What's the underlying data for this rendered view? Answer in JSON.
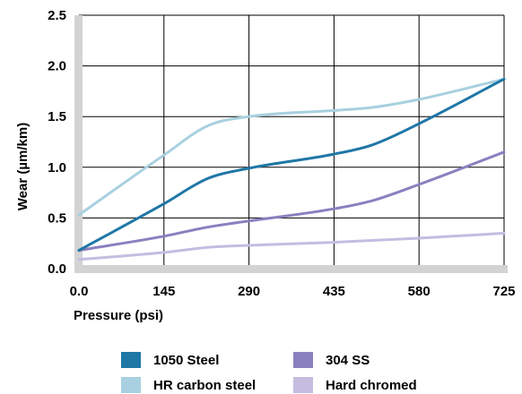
{
  "chart_data": {
    "type": "line",
    "title": "",
    "xlabel": "Pressure (psi)",
    "ylabel": "Wear (µm/km)",
    "xlim": [
      0,
      725
    ],
    "ylim": [
      0,
      2.5
    ],
    "xticks": [
      0,
      145,
      290,
      435,
      580,
      725
    ],
    "xtick_labels": [
      "0.0",
      "145",
      "290",
      "435",
      "580",
      "725"
    ],
    "yticks": [
      0,
      0.5,
      1.0,
      1.5,
      2.0,
      2.5
    ],
    "ytick_labels": [
      "0.0",
      "0.5",
      "1.0",
      "1.5",
      "2.0",
      "2.5"
    ],
    "grid": true,
    "legend_position": "bottom",
    "series": [
      {
        "name": "1050 Steel",
        "color": "#1f77a6",
        "x": [
          0,
          145,
          220,
          290,
          435,
          500,
          580,
          725
        ],
        "y": [
          0.18,
          0.64,
          0.89,
          0.99,
          1.13,
          1.22,
          1.43,
          1.87
        ]
      },
      {
        "name": "HR carbon steel",
        "color": "#a8d0e0",
        "x": [
          0,
          145,
          220,
          290,
          435,
          500,
          580,
          725
        ],
        "y": [
          0.53,
          1.12,
          1.41,
          1.5,
          1.56,
          1.59,
          1.67,
          1.87
        ]
      },
      {
        "name": "304 SS",
        "color": "#8b80bf",
        "x": [
          0,
          145,
          220,
          290,
          435,
          500,
          580,
          725
        ],
        "y": [
          0.18,
          0.32,
          0.41,
          0.47,
          0.59,
          0.67,
          0.83,
          1.15
        ]
      },
      {
        "name": "Hard chromed",
        "color": "#c4bde0",
        "x": [
          0,
          145,
          220,
          290,
          435,
          580,
          725
        ],
        "y": [
          0.09,
          0.16,
          0.21,
          0.23,
          0.26,
          0.3,
          0.35
        ]
      }
    ]
  }
}
